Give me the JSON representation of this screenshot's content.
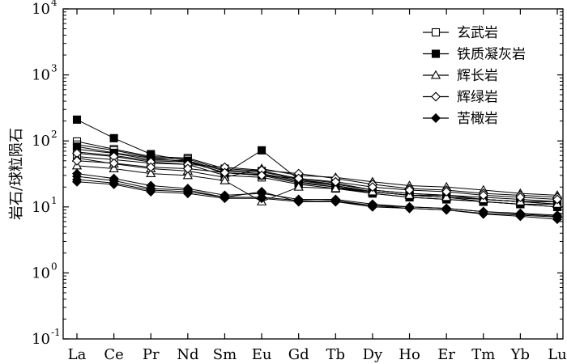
{
  "chart_data": {
    "type": "line",
    "title": "",
    "xlabel": "",
    "ylabel": "岩石/球粒陨石",
    "y_scale": "log",
    "ylim": [
      0.1,
      10000
    ],
    "yticks": [
      {
        "value": 0.1,
        "base": "10",
        "exp": "-1"
      },
      {
        "value": 1,
        "base": "10",
        "exp": "0"
      },
      {
        "value": 10,
        "base": "10",
        "exp": "1"
      },
      {
        "value": 100,
        "base": "10",
        "exp": "2"
      },
      {
        "value": 1000,
        "base": "10",
        "exp": "3"
      },
      {
        "value": 10000,
        "base": "10",
        "exp": "4"
      }
    ],
    "categories": [
      "La",
      "Ce",
      "Pr",
      "Nd",
      "Sm",
      "Eu",
      "Gd",
      "Tb",
      "Dy",
      "Ho",
      "Er",
      "Tm",
      "Yb",
      "Lu"
    ],
    "legend": {
      "position": "top-right",
      "entries": [
        {
          "label": "玄武岩",
          "marker": "open-square"
        },
        {
          "label": "铁质凝灰岩",
          "marker": "filled-square"
        },
        {
          "label": "辉长岩",
          "marker": "open-triangle"
        },
        {
          "label": "辉绿岩",
          "marker": "open-diamond"
        },
        {
          "label": "苦橄岩",
          "marker": "filled-diamond"
        }
      ]
    },
    "series": [
      {
        "name": "玄武岩",
        "marker": "open-square",
        "values": [
          98,
          75,
          58,
          55,
          38,
          35,
          27,
          23,
          18,
          16,
          15,
          14,
          13,
          12
        ]
      },
      {
        "name": "玄武岩",
        "marker": "open-square",
        "values": [
          88,
          72,
          56,
          53,
          36,
          34,
          26,
          22,
          18,
          16,
          15,
          13,
          12,
          12
        ]
      },
      {
        "name": "玄武岩",
        "marker": "open-square",
        "values": [
          75,
          65,
          52,
          50,
          35,
          32,
          25,
          21,
          17,
          15,
          14,
          13,
          12,
          11
        ]
      },
      {
        "name": "玄武岩",
        "marker": "open-square",
        "values": [
          68,
          60,
          50,
          48,
          33,
          31,
          24,
          20,
          17,
          15,
          14,
          12,
          11,
          11
        ]
      },
      {
        "name": "玄武岩",
        "marker": "open-square",
        "values": [
          58,
          52,
          46,
          44,
          30,
          28,
          22,
          19,
          16,
          14,
          13,
          12,
          11,
          10
        ]
      },
      {
        "name": "铁质凝灰岩",
        "marker": "filled-square",
        "values": [
          210,
          110,
          63,
          50,
          32,
          72,
          26,
          21,
          17,
          15,
          15,
          13,
          12,
          12
        ]
      },
      {
        "name": "铁质凝灰岩",
        "marker": "filled-square",
        "values": [
          82,
          66,
          55,
          48,
          33,
          30,
          23,
          20,
          16,
          14,
          13,
          12,
          11,
          10
        ]
      },
      {
        "name": "辉长岩",
        "marker": "open-triangle",
        "values": [
          55,
          45,
          38,
          35,
          28,
          38,
          30,
          28,
          24,
          21,
          20,
          18,
          16,
          15
        ]
      },
      {
        "name": "辉长岩",
        "marker": "open-triangle",
        "values": [
          42,
          38,
          32,
          30,
          25,
          12,
          20,
          19,
          17,
          15,
          14,
          13,
          12,
          11
        ]
      },
      {
        "name": "辉绿岩",
        "marker": "open-diamond",
        "values": [
          65,
          58,
          48,
          44,
          40,
          36,
          32,
          27,
          22,
          19,
          18,
          16,
          15,
          14
        ]
      },
      {
        "name": "辉绿岩",
        "marker": "open-diamond",
        "values": [
          50,
          46,
          40,
          38,
          33,
          30,
          27,
          24,
          20,
          18,
          17,
          15,
          14,
          13
        ]
      },
      {
        "name": "苦橄岩",
        "marker": "filled-diamond",
        "values": [
          32,
          27,
          21,
          19,
          15,
          16,
          13,
          13,
          11,
          10,
          9.5,
          8.5,
          8,
          7.5
        ]
      },
      {
        "name": "苦橄岩",
        "marker": "filled-diamond",
        "values": [
          29,
          25,
          19,
          18,
          14,
          17,
          12,
          12.5,
          10.5,
          10,
          9.5,
          8.5,
          7.8,
          7.2
        ]
      },
      {
        "name": "苦橄岩",
        "marker": "filled-diamond",
        "values": [
          26,
          23,
          18,
          17,
          14,
          14,
          12.5,
          12,
          10.5,
          9.5,
          9.0,
          8.0,
          7.5,
          7.0
        ]
      },
      {
        "name": "苦橄岩",
        "marker": "filled-diamond",
        "values": [
          24,
          22,
          17,
          16,
          13.5,
          13.5,
          12,
          12,
          10,
          9.5,
          9.0,
          7.8,
          7.2,
          6.5
        ]
      }
    ],
    "grid": false
  }
}
